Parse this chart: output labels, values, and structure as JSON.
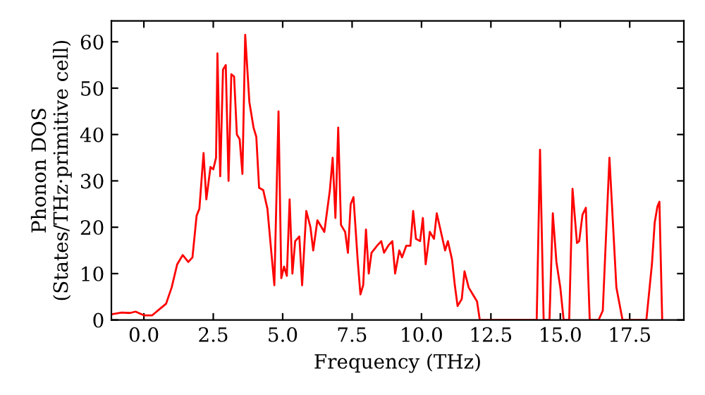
{
  "chart_data": {
    "type": "line",
    "xlabel": "Frequency (THz)",
    "ylabel": "Phonon DOS\n(States/THz·primitive cell)",
    "xlim": [
      -1.17,
      19.45
    ],
    "ylim": [
      0,
      64.5
    ],
    "xticks": [
      {
        "value": 0,
        "label": "0.0"
      },
      {
        "value": 2.5,
        "label": "2.5"
      },
      {
        "value": 5,
        "label": "5.0"
      },
      {
        "value": 7.5,
        "label": "7.5"
      },
      {
        "value": 10,
        "label": "10.0"
      },
      {
        "value": 12.5,
        "label": "12.5"
      },
      {
        "value": 15,
        "label": "15.0"
      },
      {
        "value": 17.5,
        "label": "17.5"
      }
    ],
    "yticks": [
      0,
      10,
      20,
      30,
      40,
      50,
      60
    ],
    "grid": false,
    "legend": false,
    "marker": "none",
    "line_style": "solid",
    "series": [
      {
        "color": "#ff0000",
        "x": [
          -1.17,
          -0.8,
          -0.5,
          -0.3,
          0,
          0.3,
          0.6,
          0.8,
          1.0,
          1.2,
          1.4,
          1.6,
          1.75,
          1.9,
          2.0,
          2.15,
          2.25,
          2.4,
          2.5,
          2.6,
          2.65,
          2.75,
          2.85,
          2.95,
          3.05,
          3.15,
          3.25,
          3.35,
          3.45,
          3.55,
          3.65,
          3.8,
          3.95,
          4.05,
          4.15,
          4.3,
          4.45,
          4.6,
          4.7,
          4.85,
          4.95,
          5.05,
          5.15,
          5.25,
          5.35,
          5.45,
          5.6,
          5.7,
          5.85,
          6.0,
          6.1,
          6.25,
          6.5,
          6.7,
          6.8,
          6.9,
          7.0,
          7.1,
          7.25,
          7.35,
          7.45,
          7.55,
          7.7,
          7.8,
          7.9,
          8.0,
          8.1,
          8.2,
          8.4,
          8.55,
          8.65,
          8.8,
          8.95,
          9.05,
          9.2,
          9.3,
          9.45,
          9.6,
          9.7,
          9.8,
          9.95,
          10.05,
          10.15,
          10.3,
          10.45,
          10.55,
          10.7,
          10.85,
          10.95,
          11.1,
          11.2,
          11.3,
          11.45,
          11.55,
          11.7,
          11.85,
          12.0,
          12.1,
          14.15,
          14.27,
          14.4,
          14.61,
          14.73,
          14.86,
          15.0,
          15.12,
          15.32,
          15.44,
          15.6,
          15.68,
          15.8,
          15.92,
          16.06,
          16.38,
          16.53,
          16.77,
          17.02,
          17.24,
          17.33,
          18.1,
          18.3,
          18.4,
          18.5,
          18.57,
          18.67
        ],
        "values": [
          1.2,
          1.6,
          1.5,
          1.8,
          1.0,
          1.0,
          2.5,
          3.5,
          7,
          12,
          14,
          12.5,
          13.5,
          22.5,
          24,
          36,
          26,
          33,
          32.5,
          35,
          57.5,
          31,
          54,
          55,
          30,
          53,
          52.5,
          40,
          39,
          31.5,
          61.5,
          47,
          41.5,
          39.5,
          28.5,
          28,
          24,
          14,
          7.5,
          45,
          9,
          11.5,
          9.5,
          26,
          10,
          17,
          18,
          7.5,
          23.5,
          20,
          15,
          21.5,
          19,
          28,
          35,
          22,
          41.5,
          20.5,
          19,
          14.5,
          25,
          26.5,
          13,
          5.5,
          7.5,
          19.5,
          10,
          14.5,
          16,
          17,
          14.5,
          16,
          17,
          10,
          15,
          13.5,
          16,
          16,
          23.5,
          17.5,
          17,
          22,
          12,
          19,
          17.5,
          23,
          19,
          15,
          17,
          13,
          7.5,
          3,
          4.5,
          10.5,
          7,
          5.5,
          4,
          0,
          0,
          36.7,
          0,
          0,
          23,
          12.5,
          7,
          0,
          0,
          28.3,
          16.6,
          17,
          22.7,
          24.2,
          0,
          0,
          2,
          35,
          7,
          0,
          0,
          0,
          12,
          21,
          24.5,
          25.5,
          0
        ]
      }
    ]
  }
}
